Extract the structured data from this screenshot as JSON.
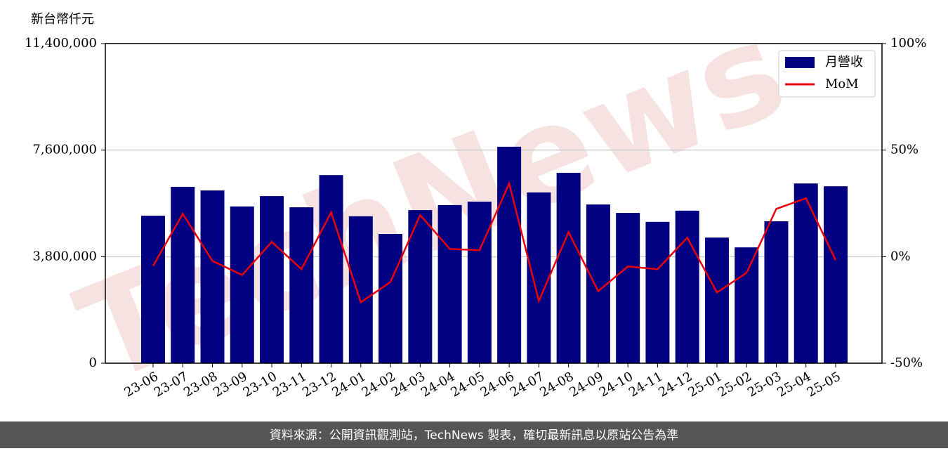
{
  "chart_data": {
    "type": "bar-line",
    "y_axis_label": "新台幣仟元",
    "watermark": "TechNews",
    "footer": "資料來源：公開資訊觀測站，TechNews 製表，確切最新訊息以原站公告為準",
    "categories": [
      "23-06",
      "23-07",
      "23-08",
      "23-09",
      "23-10",
      "23-11",
      "23-12",
      "24-01",
      "24-02",
      "24-03",
      "24-04",
      "24-05",
      "24-06",
      "24-07",
      "24-08",
      "24-09",
      "24-10",
      "24-11",
      "24-12",
      "25-01",
      "25-02",
      "25-03",
      "25-04",
      "25-05"
    ],
    "series": [
      {
        "name": "月營收",
        "color": "#000080",
        "type": "bar",
        "values": [
          5260000,
          6290000,
          6160000,
          5590000,
          5960000,
          5560000,
          6710000,
          5240000,
          4610000,
          5460000,
          5640000,
          5760000,
          7720000,
          6090000,
          6790000,
          5660000,
          5360000,
          5040000,
          5440000,
          4480000,
          4130000,
          5060000,
          6410000,
          6310000
        ]
      },
      {
        "name": "MoM",
        "color": "#e8000b",
        "type": "line",
        "axis": "y2",
        "values": [
          -4.3,
          20.1,
          -2.0,
          -8.6,
          6.9,
          -5.9,
          20.8,
          -21.4,
          -11.9,
          19.5,
          3.6,
          3.0,
          34.3,
          -20.8,
          11.5,
          -16.2,
          -4.6,
          -5.9,
          8.9,
          -16.8,
          -7.6,
          22.4,
          27.4,
          -1.6
        ]
      }
    ],
    "ylim": [
      0,
      11400000
    ],
    "yticks": [
      0,
      {
        "value": 3800000,
        "label": "3,800,000"
      },
      {
        "value": 7600000,
        "label": "7,600,000"
      },
      {
        "value": 11400000,
        "label": "11,400,000"
      }
    ],
    "y2lim": [
      -50,
      100
    ],
    "y2ticks": [
      {
        "value": -50,
        "label": "-50%"
      },
      {
        "value": 0,
        "label": "0%"
      },
      {
        "value": 50,
        "label": "50%"
      },
      {
        "value": 100,
        "label": "100%"
      }
    ],
    "grid": true,
    "legend": "upper right"
  }
}
